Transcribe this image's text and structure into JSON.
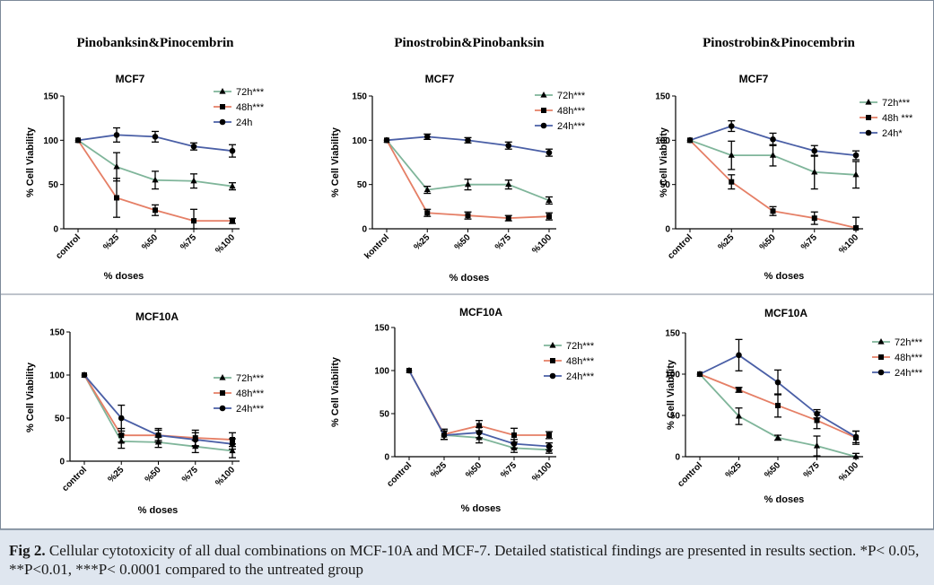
{
  "figure": {
    "row_titles": [
      "Pinobanksin&Pinocembrin",
      "Pinostrobin&Pinobanksin",
      "Pinostrobin&Pinocembrin"
    ],
    "caption_label": "Fig 2.",
    "caption_text": "Cellular cytotoxicity of all dual combinations on MCF-10A and MCF-7. Detailed statistical findings are presented in results section. *P< 0.05, **P<0.01, ***P< 0.0001 compared to the untreated group"
  },
  "colors": {
    "72h": "#7fb59a",
    "48h": "#e57f66",
    "24h": "#4a5fa6",
    "axis": "#000000"
  },
  "chart_data": [
    {
      "type": "line",
      "title": "MCF7",
      "xlabel": "% doses",
      "ylabel": "% Cell Viability",
      "categories": [
        "control",
        "%25",
        "%50",
        "%75",
        "%100"
      ],
      "ylim": [
        0,
        150
      ],
      "yticks": [
        0,
        50,
        100,
        150
      ],
      "series": [
        {
          "name": "72h***",
          "marker": "triangle",
          "values": [
            100,
            70,
            55,
            54,
            48
          ],
          "errors": [
            0,
            16,
            10,
            8,
            4
          ]
        },
        {
          "name": "48h***",
          "marker": "square",
          "values": [
            100,
            35,
            21,
            9,
            9
          ],
          "errors": [
            0,
            22,
            6,
            13,
            3
          ]
        },
        {
          "name": "24h",
          "marker": "circle",
          "values": [
            100,
            106,
            104,
            93,
            88
          ],
          "errors": [
            0,
            8,
            6,
            4,
            7
          ]
        }
      ]
    },
    {
      "type": "line",
      "title": "MCF7",
      "xlabel": "% doses",
      "ylabel": "% Cell Viability",
      "categories": [
        "kontrol",
        "%25",
        "%50",
        "%75",
        "%100"
      ],
      "ylim": [
        0,
        150
      ],
      "yticks": [
        0,
        50,
        100,
        150
      ],
      "series": [
        {
          "name": "72h***",
          "marker": "triangle",
          "values": [
            100,
            44,
            50,
            50,
            32
          ],
          "errors": [
            0,
            4,
            6,
            5,
            4
          ]
        },
        {
          "name": "48h***",
          "marker": "square",
          "values": [
            100,
            18,
            15,
            12,
            14
          ],
          "errors": [
            0,
            4,
            4,
            3,
            4
          ]
        },
        {
          "name": "24h***",
          "marker": "circle",
          "values": [
            100,
            104,
            100,
            94,
            86
          ],
          "errors": [
            0,
            3,
            3,
            4,
            4
          ]
        }
      ]
    },
    {
      "type": "line",
      "title": "MCF7",
      "xlabel": "% doses",
      "ylabel": "% Cell Viability",
      "categories": [
        "control",
        "%25",
        "%50",
        "%75",
        "%100"
      ],
      "ylim": [
        0,
        150
      ],
      "yticks": [
        0,
        50,
        100,
        150
      ],
      "series": [
        {
          "name": "72h***",
          "marker": "triangle",
          "values": [
            100,
            83,
            83,
            64,
            61
          ],
          "errors": [
            0,
            16,
            12,
            19,
            15
          ]
        },
        {
          "name": "48h ***",
          "marker": "square",
          "values": [
            100,
            53,
            20,
            12,
            1
          ],
          "errors": [
            0,
            8,
            5,
            7,
            12
          ]
        },
        {
          "name": "24h*",
          "marker": "circle",
          "values": [
            100,
            116,
            101,
            88,
            83
          ],
          "errors": [
            0,
            6,
            7,
            6,
            5
          ]
        }
      ]
    },
    {
      "type": "line",
      "title": "MCF10A",
      "xlabel": "% doses",
      "ylabel": "% Cell Viability",
      "categories": [
        "control",
        "%25",
        "%50",
        "%75",
        "%100"
      ],
      "ylim": [
        0,
        150
      ],
      "yticks": [
        0,
        50,
        100,
        150
      ],
      "series": [
        {
          "name": "72h***",
          "marker": "triangle",
          "values": [
            100,
            23,
            22,
            17,
            12
          ],
          "errors": [
            0,
            8,
            6,
            7,
            8
          ]
        },
        {
          "name": "48h***",
          "marker": "square",
          "values": [
            100,
            30,
            30,
            27,
            25
          ],
          "errors": [
            0,
            8,
            6,
            9,
            8
          ]
        },
        {
          "name": "24h***",
          "marker": "circle",
          "values": [
            100,
            50,
            30,
            25,
            20
          ],
          "errors": [
            0,
            15,
            8,
            8,
            6
          ]
        }
      ]
    },
    {
      "type": "line",
      "title": "MCF10A",
      "xlabel": "% doses",
      "ylabel": "% Cell Viability",
      "categories": [
        "control",
        "%25",
        "%50",
        "%75",
        "%100"
      ],
      "ylim": [
        0,
        150
      ],
      "yticks": [
        0,
        50,
        100,
        150
      ],
      "series": [
        {
          "name": "72h***",
          "marker": "triangle",
          "values": [
            100,
            25,
            22,
            10,
            8
          ],
          "errors": [
            0,
            5,
            6,
            5,
            4
          ]
        },
        {
          "name": "48h***",
          "marker": "square",
          "values": [
            100,
            26,
            36,
            25,
            25
          ],
          "errors": [
            0,
            6,
            6,
            8,
            4
          ]
        },
        {
          "name": "24h***",
          "marker": "circle",
          "values": [
            100,
            25,
            28,
            15,
            12
          ],
          "errors": [
            0,
            5,
            6,
            5,
            4
          ]
        }
      ]
    },
    {
      "type": "line",
      "title": "MCF10A",
      "xlabel": "% doses",
      "ylabel": "% Cell Viability",
      "categories": [
        "control",
        "%25",
        "%50",
        "%75",
        "%100"
      ],
      "ylim": [
        0,
        150
      ],
      "yticks": [
        0,
        50,
        100,
        150
      ],
      "series": [
        {
          "name": "72h***",
          "marker": "triangle",
          "values": [
            100,
            49,
            23,
            13,
            0
          ],
          "errors": [
            0,
            10,
            3,
            12,
            4
          ]
        },
        {
          "name": "48h***",
          "marker": "square",
          "values": [
            100,
            81,
            62,
            44,
            23
          ],
          "errors": [
            0,
            3,
            14,
            10,
            8
          ]
        },
        {
          "name": "24h***",
          "marker": "circle",
          "values": [
            100,
            123,
            90,
            52,
            24
          ],
          "errors": [
            0,
            19,
            15,
            5,
            7
          ]
        }
      ]
    }
  ]
}
